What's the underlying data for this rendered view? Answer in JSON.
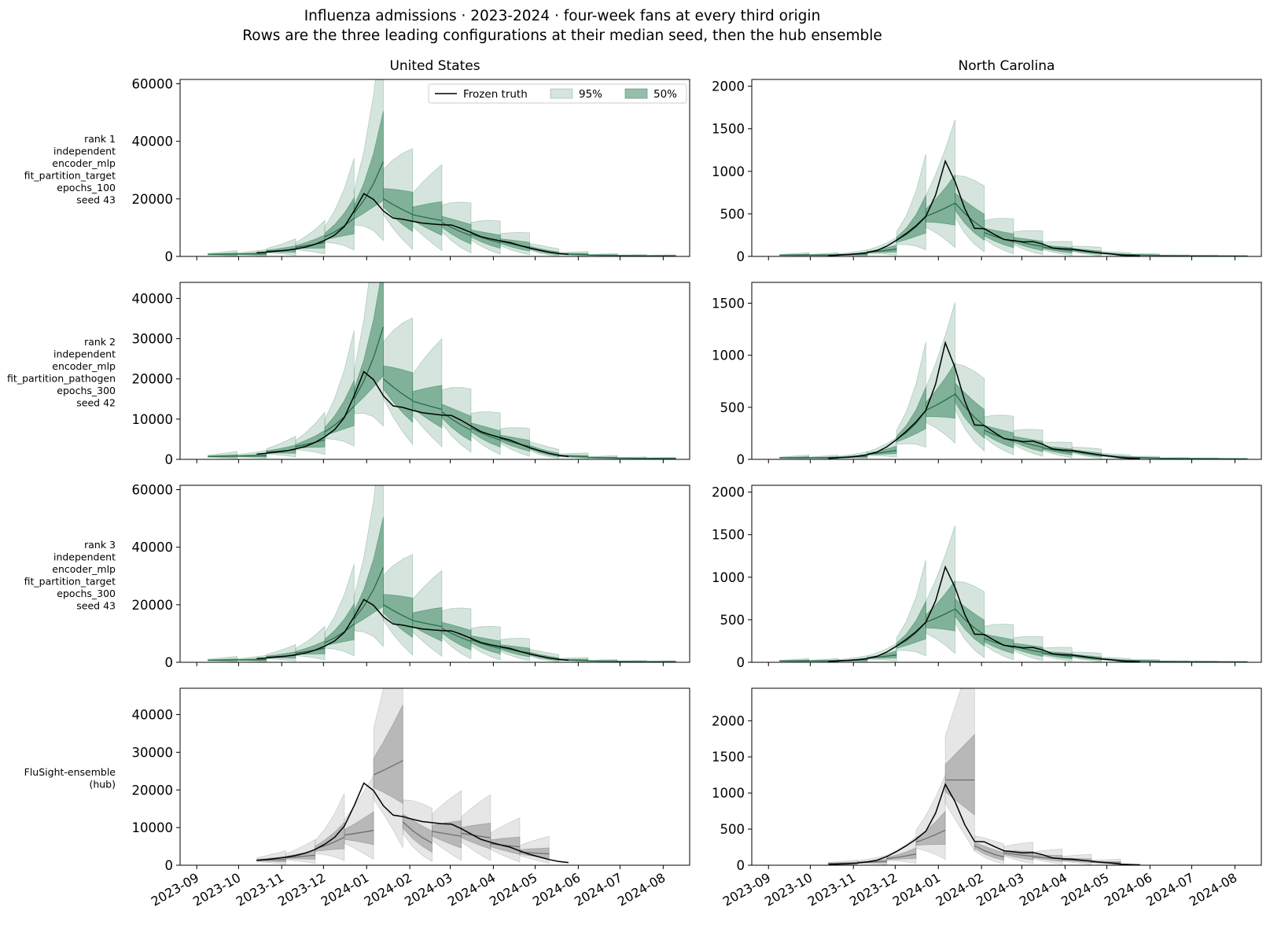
{
  "figure": {
    "title": "Influenza admissions · 2023-2024 · four-week fans at every third origin",
    "subtitle": "Rows are the three leading configurations at their median seed, then the hub ensemble"
  },
  "colors": {
    "model_band": "#2e7d55",
    "model_line": "#2a6b49",
    "hub_band": "#808080",
    "hub_line": "#6e6e6e",
    "truth": "#000000"
  },
  "legend": {
    "truth": "Frozen truth",
    "q95": "95%",
    "q50": "50%",
    "placement": "upper right of first panel"
  },
  "chart_data": {
    "type": "line",
    "columns": [
      "United States",
      "North Carolina"
    ],
    "row_labels": [
      [
        "rank 1",
        "independent",
        "encoder_mlp",
        "fit_partition_target",
        "epochs_100",
        "seed 43"
      ],
      [
        "rank 2",
        "independent",
        "encoder_mlp",
        "fit_partition_pathogen",
        "epochs_300",
        "seed 42"
      ],
      [
        "rank 3",
        "independent",
        "encoder_mlp",
        "fit_partition_target",
        "epochs_300",
        "seed 43"
      ],
      [
        "FluSight-ensemble",
        "(hub)"
      ]
    ],
    "x_ticks": [
      "2023-09",
      "2023-10",
      "2023-11",
      "2023-12",
      "2024-01",
      "2024-02",
      "2024-03",
      "2024-04",
      "2024-05",
      "2024-06",
      "2024-07",
      "2024-08"
    ],
    "x_range": [
      "2023-08-20",
      "2024-08-20"
    ],
    "y_ticks": [
      [
        [
          0,
          20000,
          40000,
          60000
        ],
        [
          0,
          500,
          1000,
          1500,
          2000
        ]
      ],
      [
        [
          0,
          10000,
          20000,
          30000,
          40000
        ],
        [
          0,
          500,
          1000,
          1500
        ]
      ],
      [
        [
          0,
          20000,
          40000,
          60000
        ],
        [
          0,
          500,
          1000,
          1500,
          2000
        ]
      ],
      [
        [
          0,
          10000,
          20000,
          30000,
          40000
        ],
        [
          0,
          500,
          1000,
          1500,
          2000
        ]
      ]
    ],
    "y_ranges": [
      [
        [
          0,
          61500
        ],
        [
          0,
          2080
        ]
      ],
      [
        [
          0,
          44000
        ],
        [
          0,
          1700
        ]
      ],
      [
        [
          0,
          61500
        ],
        [
          0,
          2080
        ]
      ],
      [
        [
          0,
          47000
        ],
        [
          0,
          2450
        ]
      ]
    ],
    "truth": {
      "dates": [
        "2023-10-14",
        "2023-10-21",
        "2023-10-28",
        "2023-11-04",
        "2023-11-11",
        "2023-11-18",
        "2023-11-25",
        "2023-12-02",
        "2023-12-09",
        "2023-12-16",
        "2023-12-23",
        "2023-12-30",
        "2024-01-06",
        "2024-01-13",
        "2024-01-20",
        "2024-01-27",
        "2024-02-03",
        "2024-02-10",
        "2024-02-17",
        "2024-02-24",
        "2024-03-02",
        "2024-03-09",
        "2024-03-16",
        "2024-03-23",
        "2024-03-30",
        "2024-04-06",
        "2024-04-13",
        "2024-04-20",
        "2024-04-27",
        "2024-05-04",
        "2024-05-11",
        "2024-05-18",
        "2024-05-25"
      ],
      "United States": [
        1300,
        1500,
        1800,
        2100,
        2600,
        3200,
        4200,
        5600,
        7400,
        10400,
        15800,
        21800,
        19800,
        15800,
        13300,
        12900,
        12200,
        11600,
        11300,
        11000,
        10900,
        9700,
        8300,
        6900,
        6100,
        5400,
        4800,
        3800,
        2900,
        2200,
        1500,
        1000,
        700
      ],
      "North Carolina": [
        10,
        15,
        20,
        30,
        45,
        70,
        120,
        190,
        270,
        360,
        470,
        720,
        1120,
        880,
        560,
        330,
        325,
        260,
        200,
        185,
        170,
        175,
        145,
        100,
        90,
        85,
        70,
        55,
        40,
        30,
        15,
        10,
        5
      ]
    },
    "fans": {
      "origins": [
        "2023-09-09",
        "2023-09-30",
        "2023-10-21",
        "2023-11-11",
        "2023-12-02",
        "2023-12-23",
        "2024-01-13",
        "2024-02-03",
        "2024-02-24",
        "2024-03-16",
        "2024-04-06",
        "2024-04-27",
        "2024-05-18",
        "2024-06-08",
        "2024-06-29",
        "2024-07-20"
      ],
      "United States": {
        "median": [
          700,
          800,
          1800,
          3200,
          6800,
          15000,
          20000,
          14500,
          11800,
          7800,
          5200,
          3000,
          900,
          450,
          300,
          250
        ],
        "growth": [
          1.05,
          1.05,
          1.1,
          1.15,
          1.25,
          1.3,
          0.9,
          0.95,
          0.85,
          0.85,
          0.85,
          0.7,
          0.9,
          0.95,
          0.95,
          0.95
        ]
      },
      "North Carolina": {
        "median": [
          15,
          15,
          20,
          50,
          190,
          470,
          630,
          280,
          190,
          110,
          80,
          40,
          20,
          10,
          8,
          6
        ],
        "growth": [
          1.05,
          1.05,
          1.15,
          1.2,
          1.35,
          1.1,
          0.8,
          0.85,
          0.85,
          0.85,
          0.8,
          0.75,
          0.85,
          0.9,
          0.9,
          0.9
        ]
      },
      "hub_origins": [
        "2023-10-14",
        "2023-11-04",
        "2023-11-25",
        "2023-12-16",
        "2024-01-06",
        "2024-01-27",
        "2024-02-17",
        "2024-03-09",
        "2024-03-30",
        "2024-04-20"
      ],
      "hub": {
        "United States": {
          "median": [
            1300,
            2000,
            4300,
            8000,
            24000,
            11500,
            9000,
            8500,
            5700,
            3500
          ],
          "growth": [
            1.05,
            1.1,
            1.2,
            1.05,
            1.05,
            0.8,
            0.95,
            0.95,
            0.95,
            0.95
          ]
        },
        "North Carolina": {
          "median": [
            25,
            40,
            90,
            320,
            1180,
            270,
            170,
            120,
            80,
            45
          ],
          "growth": [
            1.05,
            1.1,
            1.2,
            1.15,
            1.0,
            0.75,
            0.9,
            0.9,
            0.9,
            0.9
          ]
        }
      }
    }
  }
}
